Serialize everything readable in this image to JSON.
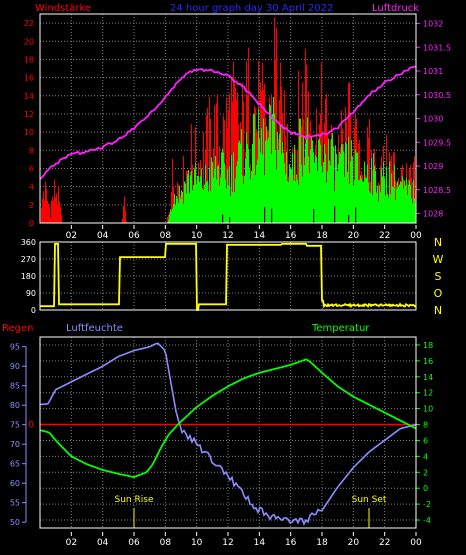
{
  "colors": {
    "bg": "#000000",
    "frame": "#ffffff",
    "grid": "#808080",
    "wind_label": "#ff0000",
    "title": "#2828ff",
    "pressure": "#ff20ff",
    "wind_bar": "#ff0000",
    "gust_bar": "#00ff00",
    "calm_bar": "#000000",
    "direction": "#ffff00",
    "humidity": "#8c8cff",
    "temperature": "#00ff00",
    "rain": "#ff0000",
    "sun_label": "#ffff00"
  },
  "chart_data": [
    {
      "type": "bar",
      "title": "24 hour graph day  30 April 2022",
      "ylabel_left": "Windstärke",
      "ylabel_right": "Luftdruck",
      "x_ticks": [
        "02",
        "04",
        "06",
        "08",
        "10",
        "12",
        "14",
        "16",
        "18",
        "20",
        "22",
        "00"
      ],
      "wind_ticks": [
        0,
        2,
        4,
        6,
        8,
        10,
        12,
        14,
        16,
        18,
        20,
        22
      ],
      "wind_ylim": [
        0,
        23
      ],
      "pressure_ticks": [
        "1028",
        "1028.5",
        "1029",
        "1029.5",
        "1030",
        "1030.5",
        "1031",
        "1031.5",
        "1032"
      ],
      "pressure_ylim": [
        1027.8,
        1032.2
      ],
      "wind_strength": [
        [
          0.0,
          0
        ],
        [
          0.2,
          5
        ],
        [
          0.6,
          2
        ],
        [
          1.0,
          5
        ],
        [
          1.4,
          0
        ],
        [
          5.2,
          0
        ],
        [
          5.35,
          3
        ],
        [
          5.5,
          0
        ],
        [
          8.05,
          0
        ],
        [
          8.2,
          2
        ],
        [
          8.4,
          6
        ],
        [
          9.0,
          5
        ],
        [
          9.6,
          9
        ],
        [
          10.0,
          8
        ],
        [
          10.6,
          10
        ],
        [
          11.0,
          12
        ],
        [
          11.6,
          11
        ],
        [
          12.2,
          15
        ],
        [
          12.8,
          12
        ],
        [
          13.4,
          17
        ],
        [
          14.0,
          14
        ],
        [
          14.6,
          13
        ],
        [
          15.0,
          22
        ],
        [
          15.4,
          12
        ],
        [
          16.0,
          10
        ],
        [
          16.6,
          14
        ],
        [
          17.0,
          20
        ],
        [
          17.5,
          11
        ],
        [
          18.0,
          14
        ],
        [
          18.6,
          9
        ],
        [
          19.2,
          10
        ],
        [
          19.8,
          13
        ],
        [
          20.4,
          7
        ],
        [
          21.0,
          9
        ],
        [
          21.6,
          6
        ],
        [
          22.2,
          8
        ],
        [
          22.8,
          7
        ],
        [
          23.4,
          5
        ],
        [
          24.0,
          6
        ]
      ],
      "wind_gust": [
        [
          8.1,
          0
        ],
        [
          8.4,
          3
        ],
        [
          9.0,
          4
        ],
        [
          9.6,
          6
        ],
        [
          10.2,
          5
        ],
        [
          10.8,
          6
        ],
        [
          11.4,
          7
        ],
        [
          12.0,
          6
        ],
        [
          12.6,
          8
        ],
        [
          13.2,
          9
        ],
        [
          13.8,
          10
        ],
        [
          14.4,
          10
        ],
        [
          15.0,
          12
        ],
        [
          15.6,
          8
        ],
        [
          16.2,
          7
        ],
        [
          16.8,
          12
        ],
        [
          17.4,
          7
        ],
        [
          18.0,
          9
        ],
        [
          18.6,
          8
        ],
        [
          19.2,
          7
        ],
        [
          19.8,
          8
        ],
        [
          20.4,
          6
        ],
        [
          21.0,
          7
        ],
        [
          21.6,
          5
        ],
        [
          22.2,
          6
        ],
        [
          22.8,
          5
        ],
        [
          23.4,
          4
        ],
        [
          24.0,
          4
        ]
      ],
      "pressure": [
        [
          0.0,
          1028.75
        ],
        [
          1.0,
          1029.05
        ],
        [
          2.0,
          1029.25
        ],
        [
          3.0,
          1029.3
        ],
        [
          4.0,
          1029.4
        ],
        [
          5.0,
          1029.55
        ],
        [
          6.0,
          1029.8
        ],
        [
          7.0,
          1030.1
        ],
        [
          8.0,
          1030.45
        ],
        [
          9.0,
          1030.85
        ],
        [
          10.0,
          1031.05
        ],
        [
          11.0,
          1031.0
        ],
        [
          12.0,
          1030.9
        ],
        [
          13.0,
          1030.65
        ],
        [
          14.0,
          1030.3
        ],
        [
          15.0,
          1029.95
        ],
        [
          16.0,
          1029.7
        ],
        [
          17.0,
          1029.6
        ],
        [
          18.0,
          1029.65
        ],
        [
          19.0,
          1029.8
        ],
        [
          20.0,
          1030.15
        ],
        [
          21.0,
          1030.5
        ],
        [
          22.0,
          1030.75
        ],
        [
          23.0,
          1030.95
        ],
        [
          24.0,
          1031.1
        ]
      ]
    },
    {
      "type": "line",
      "x_ticks": [
        "02",
        "04",
        "06",
        "08",
        "10",
        "12",
        "14",
        "16",
        "18",
        "20",
        "22",
        "00"
      ],
      "y_ticks": [
        0,
        90,
        180,
        270,
        360
      ],
      "ylim": [
        0,
        360
      ],
      "right_labels": [
        "N",
        "W",
        "S",
        "O",
        "N"
      ],
      "direction": [
        [
          0.0,
          20
        ],
        [
          0.8,
          20
        ],
        [
          0.9,
          350
        ],
        [
          1.1,
          350
        ],
        [
          1.2,
          30
        ],
        [
          5.0,
          30
        ],
        [
          5.1,
          280
        ],
        [
          7.9,
          280
        ],
        [
          8.0,
          350
        ],
        [
          9.8,
          350
        ],
        [
          9.9,
          350
        ],
        [
          10.0,
          0
        ],
        [
          10.1,
          30
        ],
        [
          11.8,
          30
        ],
        [
          11.9,
          345
        ],
        [
          15.2,
          345
        ],
        [
          15.4,
          350
        ],
        [
          16.8,
          350
        ],
        [
          17.0,
          340
        ],
        [
          17.9,
          340
        ],
        [
          18.0,
          50
        ],
        [
          19.0,
          20
        ],
        [
          20.0,
          30
        ],
        [
          22.0,
          30
        ],
        [
          24.0,
          30
        ]
      ]
    },
    {
      "type": "line",
      "label_rain": "Regen",
      "label_humidity": "Luftfeuchte",
      "label_temperature": "Temperatur",
      "x_ticks": [
        "02",
        "04",
        "06",
        "08",
        "10",
        "12",
        "14",
        "16",
        "18",
        "20",
        "22",
        "00"
      ],
      "humidity_ticks": [
        50,
        55,
        60,
        65,
        70,
        75,
        80,
        85,
        90,
        95
      ],
      "humidity_ylim": [
        48.5,
        97.5
      ],
      "temperature_ticks": [
        -4,
        -2,
        0,
        2,
        4,
        6,
        8,
        10,
        12,
        14,
        16,
        18
      ],
      "temperature_ylim": [
        -5,
        19
      ],
      "rain_tick": "0",
      "rain_value": 0,
      "sunrise": {
        "label": "Sun Rise",
        "x": 6.0
      },
      "sunset": {
        "label": "Sun Set",
        "x": 21.0
      },
      "humidity": [
        [
          0.0,
          80.2
        ],
        [
          0.5,
          80.3
        ],
        [
          1.0,
          84.0
        ],
        [
          2.0,
          86.0
        ],
        [
          3.0,
          88.0
        ],
        [
          4.0,
          90.0
        ],
        [
          5.0,
          92.5
        ],
        [
          6.0,
          94.0
        ],
        [
          7.0,
          95.0
        ],
        [
          7.5,
          96.0
        ],
        [
          8.0,
          94.0
        ],
        [
          8.3,
          87.0
        ],
        [
          8.7,
          78.0
        ],
        [
          9.0,
          74.0
        ],
        [
          10.0,
          70.0
        ],
        [
          11.0,
          66.0
        ],
        [
          12.0,
          62.0
        ],
        [
          13.0,
          57.0
        ],
        [
          14.0,
          53.0
        ],
        [
          15.0,
          51.0
        ],
        [
          16.0,
          50.0
        ],
        [
          17.0,
          50.5
        ],
        [
          18.0,
          53.0
        ],
        [
          19.0,
          59.0
        ],
        [
          20.0,
          64.0
        ],
        [
          21.0,
          68.0
        ],
        [
          22.0,
          71.0
        ],
        [
          22.5,
          72.5
        ],
        [
          23.0,
          74.0
        ],
        [
          23.5,
          74.5
        ],
        [
          24.0,
          75.0
        ]
      ],
      "temperature": [
        [
          0.0,
          7.3
        ],
        [
          0.6,
          7.0
        ],
        [
          1.0,
          6.0
        ],
        [
          2.0,
          4.0
        ],
        [
          3.0,
          3.0
        ],
        [
          4.0,
          2.3
        ],
        [
          5.0,
          1.8
        ],
        [
          6.0,
          1.4
        ],
        [
          6.8,
          2.0
        ],
        [
          7.2,
          3.0
        ],
        [
          7.7,
          5.0
        ],
        [
          8.2,
          6.7
        ],
        [
          8.8,
          8.0
        ],
        [
          10.0,
          10.2
        ],
        [
          11.0,
          11.6
        ],
        [
          12.0,
          12.8
        ],
        [
          13.0,
          13.8
        ],
        [
          14.0,
          14.5
        ],
        [
          15.0,
          15.0
        ],
        [
          16.0,
          15.5
        ],
        [
          17.0,
          16.2
        ],
        [
          17.3,
          15.8
        ],
        [
          18.0,
          14.5
        ],
        [
          19.0,
          12.8
        ],
        [
          20.0,
          11.5
        ],
        [
          21.0,
          10.5
        ],
        [
          22.0,
          9.5
        ],
        [
          23.0,
          8.5
        ],
        [
          24.0,
          7.5
        ]
      ]
    }
  ]
}
